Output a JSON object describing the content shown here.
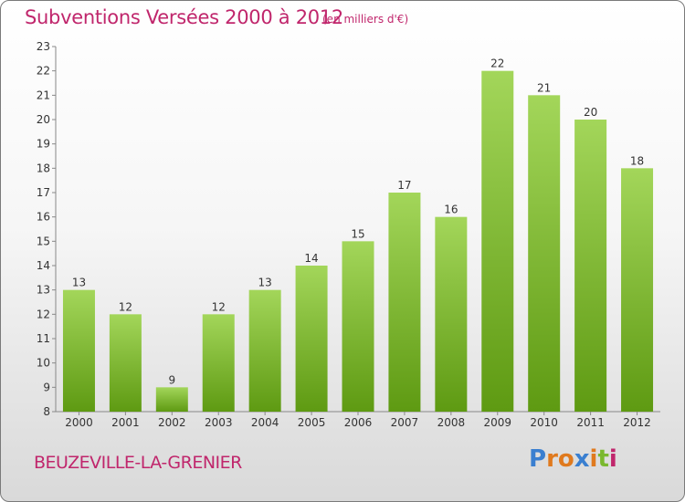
{
  "header": {
    "title": "Subventions Versées 2000 à 2012",
    "subtitle": "(en milliers d'€)"
  },
  "footer": {
    "commune": "BEUZEVILLE-LA-GRENIER",
    "logo_letters": [
      "P",
      "r",
      "o",
      "x",
      "i",
      "t",
      "i"
    ],
    "logo_colors": [
      "#3a7fd0",
      "#e07a1e",
      "#e07a1e",
      "#3a7fd0",
      "#e07a1e",
      "#7ab82e",
      "#c0266c"
    ]
  },
  "colors": {
    "bar_top": "#a3d65a",
    "bar_bottom": "#5e9a12",
    "accent": "#c0266c"
  },
  "chart_data": {
    "type": "bar",
    "title": "Subventions Versées 2000 à 2012",
    "subtitle": "(en milliers d'€)",
    "categories": [
      "2000",
      "2001",
      "2002",
      "2003",
      "2004",
      "2005",
      "2006",
      "2007",
      "2008",
      "2009",
      "2010",
      "2011",
      "2012"
    ],
    "values": [
      13,
      12,
      9,
      12,
      13,
      14,
      15,
      17,
      16,
      22,
      21,
      20,
      18
    ],
    "yticks": [
      "8",
      "9",
      "10",
      "11",
      "12",
      "13",
      "14",
      "15",
      "16",
      "17",
      "18",
      "19",
      "20",
      "21",
      "22",
      "23"
    ],
    "ylim": [
      8,
      23
    ],
    "grid": false,
    "data_labels": true
  }
}
